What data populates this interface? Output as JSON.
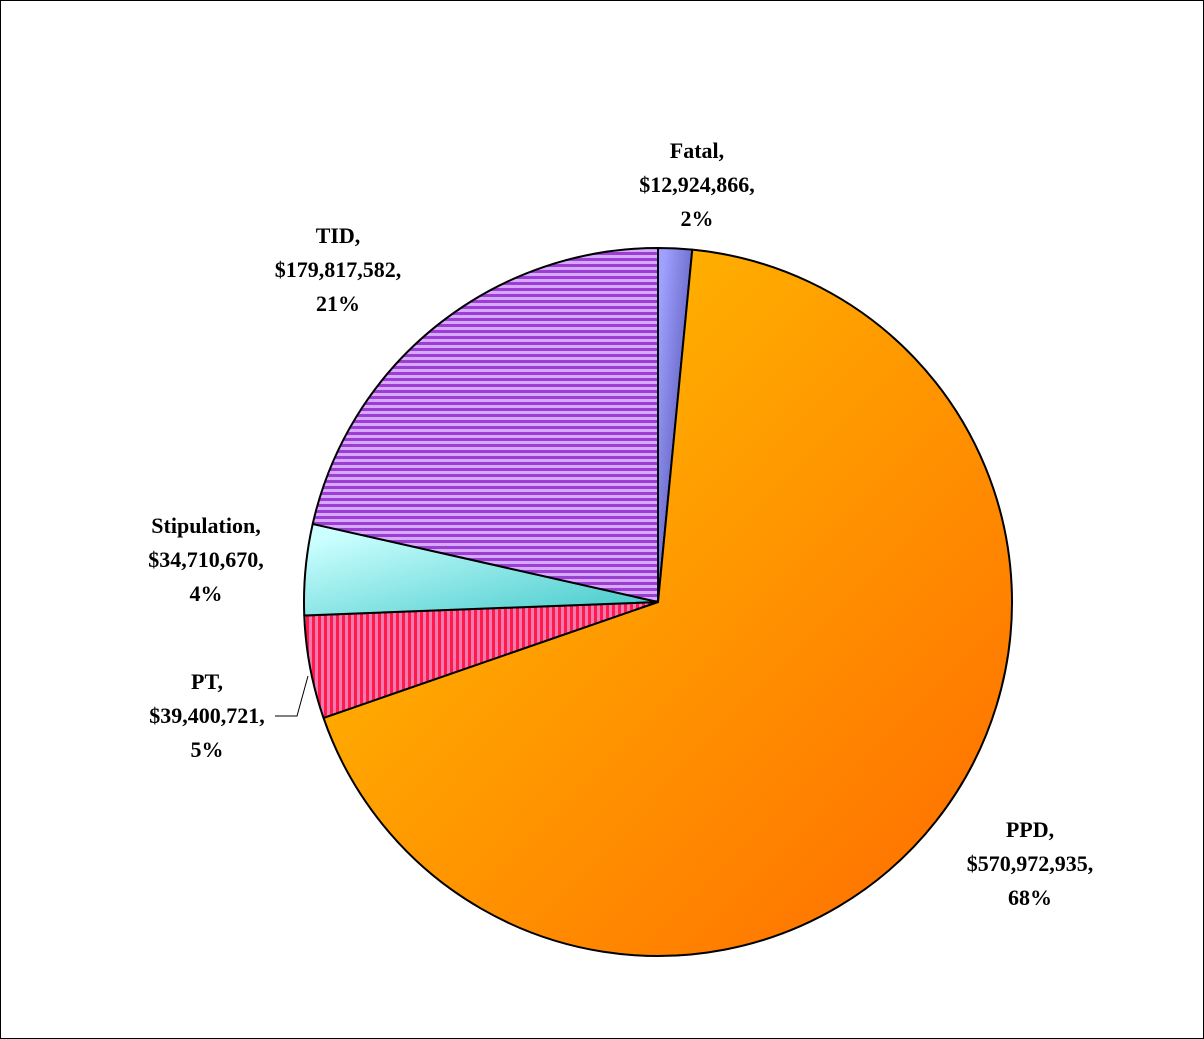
{
  "chart_data": {
    "type": "pie",
    "categories": [
      "Fatal,",
      "PPD,",
      "PT,",
      "Stipulation,",
      "TID,"
    ],
    "values": [
      12924866,
      570972935,
      39400721,
      34710670,
      179817582
    ],
    "value_labels": [
      "$12,924,866,",
      "$570,972,935,",
      "$39,400,721,",
      "$34,710,670,",
      "$179,817,582,"
    ],
    "percents": [
      2,
      68,
      5,
      4,
      21
    ],
    "percent_labels": [
      "2%",
      "68%",
      "5%",
      "4%",
      "21%"
    ],
    "colors": [
      [
        "#a0a0ff",
        "#3a3a9a"
      ],
      [
        "#ffbe00",
        "#ff6a00"
      ],
      [
        "#ff1a4a",
        "#f07ab0"
      ],
      [
        "#ccffff",
        "#40c8c8"
      ],
      [
        "#9c3fd0",
        "#d7a8ff"
      ]
    ],
    "fills": [
      "gradient",
      "gradient",
      "vstripes",
      "gradient",
      "hstripes"
    ]
  }
}
